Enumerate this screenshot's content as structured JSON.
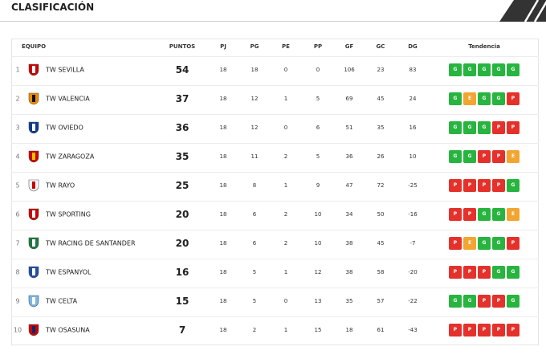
{
  "header": {
    "title": "CLASIFICACIÓN"
  },
  "table": {
    "columns": [
      "EQUIPO",
      "PUNTOS",
      "PJ",
      "PG",
      "PE",
      "PP",
      "GF",
      "GC",
      "DG",
      "Tendencia"
    ],
    "rows": [
      {
        "pos": 1,
        "team": "TW SEVILLA",
        "pts": 54,
        "pj": 18,
        "pg": 18,
        "pe": 0,
        "pp": 0,
        "gf": 106,
        "gc": 23,
        "dg": 83,
        "trend": [
          "G",
          "G",
          "G",
          "G",
          "G"
        ]
      },
      {
        "pos": 2,
        "team": "TW VALENCIA",
        "pts": 37,
        "pj": 18,
        "pg": 12,
        "pe": 1,
        "pp": 5,
        "gf": 69,
        "gc": 45,
        "dg": 24,
        "trend": [
          "G",
          "E",
          "G",
          "G",
          "P"
        ]
      },
      {
        "pos": 3,
        "team": "TW OVIEDO",
        "pts": 36,
        "pj": 18,
        "pg": 12,
        "pe": 0,
        "pp": 6,
        "gf": 51,
        "gc": 35,
        "dg": 16,
        "trend": [
          "G",
          "G",
          "G",
          "P",
          "P"
        ]
      },
      {
        "pos": 4,
        "team": "TW ZARAGOZA",
        "pts": 35,
        "pj": 18,
        "pg": 11,
        "pe": 2,
        "pp": 5,
        "gf": 36,
        "gc": 26,
        "dg": 10,
        "trend": [
          "G",
          "G",
          "P",
          "P",
          "E"
        ]
      },
      {
        "pos": 5,
        "team": "TW RAYO",
        "pts": 25,
        "pj": 18,
        "pg": 8,
        "pe": 1,
        "pp": 9,
        "gf": 47,
        "gc": 72,
        "dg": -25,
        "trend": [
          "P",
          "P",
          "P",
          "P",
          "G"
        ]
      },
      {
        "pos": 6,
        "team": "TW SPORTING",
        "pts": 20,
        "pj": 18,
        "pg": 6,
        "pe": 2,
        "pp": 10,
        "gf": 34,
        "gc": 50,
        "dg": -16,
        "trend": [
          "P",
          "P",
          "G",
          "G",
          "E"
        ]
      },
      {
        "pos": 7,
        "team": "TW RACING DE SANTANDER",
        "pts": 20,
        "pj": 18,
        "pg": 6,
        "pe": 2,
        "pp": 10,
        "gf": 38,
        "gc": 45,
        "dg": -7,
        "trend": [
          "P",
          "E",
          "G",
          "G",
          "P"
        ]
      },
      {
        "pos": 8,
        "team": "TW ESPANYOL",
        "pts": 16,
        "pj": 18,
        "pg": 5,
        "pe": 1,
        "pp": 12,
        "gf": 38,
        "gc": 58,
        "dg": -20,
        "trend": [
          "P",
          "P",
          "P",
          "G",
          "G"
        ]
      },
      {
        "pos": 9,
        "team": "TW CELTA",
        "pts": 15,
        "pj": 18,
        "pg": 5,
        "pe": 0,
        "pp": 13,
        "gf": 35,
        "gc": 57,
        "dg": -22,
        "trend": [
          "G",
          "G",
          "P",
          "P",
          "G"
        ]
      },
      {
        "pos": 10,
        "team": "TW OSASUNA",
        "pts": 7,
        "pj": 18,
        "pg": 2,
        "pe": 1,
        "pp": 15,
        "gf": 18,
        "gc": 61,
        "dg": -43,
        "trend": [
          "P",
          "P",
          "P",
          "P",
          "P"
        ]
      }
    ]
  }
}
